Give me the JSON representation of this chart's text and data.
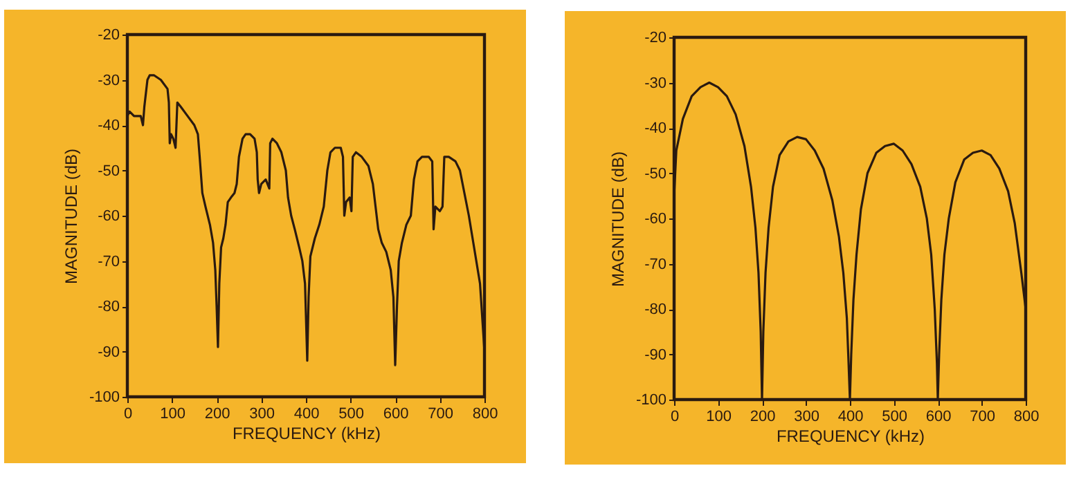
{
  "chart_data": [
    {
      "type": "line",
      "xlabel": "FREQUENCY (kHz)",
      "ylabel": "MAGNITUDE (dB)",
      "xlim": [
        0,
        800
      ],
      "ylim": [
        -100,
        -20
      ],
      "xticks": [
        0,
        100,
        200,
        300,
        400,
        500,
        600,
        700,
        800
      ],
      "yticks": [
        -100,
        -90,
        -80,
        -70,
        -60,
        -50,
        -40,
        -30,
        -20
      ],
      "x": [
        0,
        5,
        15,
        30,
        35,
        38,
        45,
        50,
        60,
        75,
        90,
        93,
        95,
        98,
        103,
        108,
        112,
        120,
        135,
        150,
        158,
        162,
        168,
        175,
        185,
        192,
        197,
        200,
        203,
        206,
        210,
        215,
        220,
        225,
        232,
        240,
        245,
        250,
        258,
        265,
        275,
        285,
        290,
        292,
        295,
        300,
        310,
        318,
        320,
        325,
        335,
        345,
        355,
        360,
        367,
        375,
        385,
        392,
        398,
        403,
        406,
        410,
        420,
        430,
        440,
        448,
        455,
        465,
        478,
        483,
        486,
        490,
        498,
        502,
        505,
        512,
        525,
        540,
        550,
        556,
        562,
        570,
        580,
        590,
        596,
        600,
        604,
        608,
        615,
        625,
        635,
        642,
        650,
        660,
        675,
        683,
        686,
        690,
        700,
        706,
        710,
        720,
        735,
        745,
        755,
        765,
        775,
        790,
        800
      ],
      "series": [
        {
          "color": "#2a1a10",
          "values": [
            -38,
            -37,
            -38,
            -38,
            -40,
            -36,
            -30,
            -29,
            -29,
            -30,
            -32,
            -35,
            -44,
            -42,
            -43,
            -45,
            -35,
            -36,
            -38,
            -40,
            -42,
            -47,
            -55,
            -58,
            -62,
            -66,
            -72,
            -80,
            -89,
            -75,
            -67,
            -65,
            -62,
            -57,
            -56,
            -55,
            -53,
            -47,
            -43,
            -42,
            -42,
            -43,
            -46,
            -52,
            -55,
            -53,
            -52,
            -54,
            -44,
            -43,
            -44,
            -46,
            -50,
            -56,
            -60,
            -63,
            -67,
            -70,
            -75,
            -92,
            -78,
            -69,
            -65,
            -62,
            -58,
            -50,
            -46,
            -45,
            -45,
            -47,
            -60,
            -57,
            -56,
            -59,
            -47,
            -46,
            -47,
            -49,
            -53,
            -58,
            -63,
            -66,
            -68,
            -72,
            -78,
            -93,
            -80,
            -70,
            -66,
            -62,
            -60,
            -52,
            -48,
            -47,
            -47,
            -48,
            -63,
            -58,
            -59,
            -58,
            -47,
            -47,
            -48,
            -50,
            -55,
            -60,
            -66,
            -75,
            -90
          ]
        }
      ]
    },
    {
      "type": "line",
      "xlabel": "FREQUENCY (kHz)",
      "ylabel": "MAGNITUDE (dB)",
      "xlim": [
        0,
        800
      ],
      "ylim": [
        -100,
        -20
      ],
      "xticks": [
        0,
        100,
        200,
        300,
        400,
        500,
        600,
        700,
        800
      ],
      "yticks": [
        -100,
        -90,
        -80,
        -70,
        -60,
        -50,
        -40,
        -30,
        -20
      ],
      "x": [
        0,
        5,
        20,
        40,
        60,
        80,
        100,
        120,
        140,
        160,
        175,
        185,
        192,
        197,
        200,
        203,
        208,
        215,
        225,
        240,
        260,
        280,
        300,
        320,
        340,
        360,
        375,
        385,
        393,
        397,
        400,
        403,
        408,
        415,
        425,
        440,
        460,
        480,
        500,
        520,
        540,
        560,
        575,
        585,
        593,
        598,
        600,
        603,
        608,
        615,
        625,
        640,
        660,
        680,
        700,
        720,
        740,
        760,
        775,
        790,
        800
      ],
      "series": [
        {
          "color": "#2a1a10",
          "values": [
            -55,
            -45,
            -38,
            -33,
            -31,
            -30,
            -31,
            -33,
            -37,
            -44,
            -53,
            -62,
            -72,
            -85,
            -100,
            -85,
            -72,
            -62,
            -53,
            -46,
            -43,
            -42,
            -42.5,
            -45,
            -49,
            -56,
            -64,
            -72,
            -82,
            -92,
            -100,
            -90,
            -78,
            -68,
            -58,
            -50,
            -45.5,
            -44,
            -43.5,
            -45,
            -48,
            -53,
            -60,
            -68,
            -80,
            -92,
            -100,
            -90,
            -78,
            -68,
            -60,
            -52,
            -47,
            -45.5,
            -45,
            -46,
            -49,
            -54,
            -61,
            -72,
            -80
          ]
        }
      ]
    }
  ]
}
